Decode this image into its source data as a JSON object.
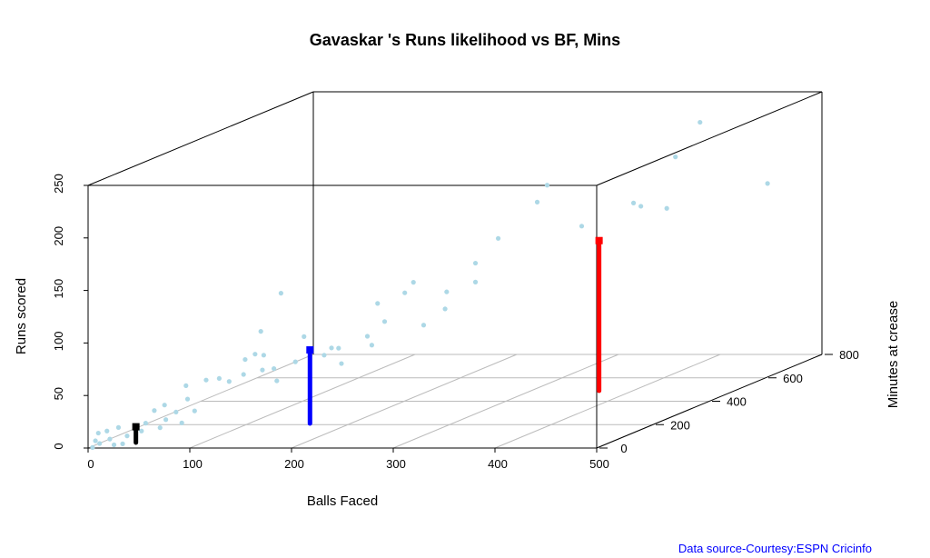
{
  "chart_data": {
    "type": "scatter3d",
    "title": "Gavaskar 's Runs likelihood vs BF, Mins",
    "xlabel": "Balls Faced",
    "ylabel": "Runs scored",
    "zlabel": "Minutes at crease",
    "source": "Data source-Courtesy:ESPN Cricinfo",
    "xlim": [
      0,
      500
    ],
    "ylim": [
      0,
      250
    ],
    "zlim": [
      0,
      800
    ],
    "xticks": [
      0,
      100,
      200,
      300,
      400,
      500
    ],
    "yticks": [
      0,
      50,
      100,
      150,
      200,
      250
    ],
    "zticks": [
      0,
      200,
      400,
      600,
      800
    ],
    "grid": true,
    "points": {
      "color": "#add8e6",
      "x": [
        425,
        408,
        472,
        319,
        312,
        379,
        384,
        402,
        343,
        285,
        269,
        269,
        226,
        220,
        249,
        201,
        248,
        206,
        233,
        134,
        194,
        197,
        120,
        150,
        169,
        174,
        176,
        164,
        144,
        122,
        116,
        129,
        121,
        109,
        131,
        108,
        98,
        91,
        82,
        68,
        69,
        53,
        61,
        74,
        46,
        54,
        40,
        21,
        13,
        7,
        27,
        15,
        5,
        8,
        18,
        3,
        65,
        50,
        37,
        24
      ],
      "z": [
        638,
        612,
        708,
        478,
        468,
        568,
        576,
        603,
        514,
        427,
        404,
        404,
        339,
        330,
        374,
        302,
        372,
        309,
        350,
        201,
        291,
        296,
        180,
        225,
        254,
        261,
        264,
        246,
        216,
        183,
        174,
        194,
        182,
        164,
        197,
        162,
        147,
        137,
        123,
        102,
        104,
        80,
        92,
        111,
        69,
        81,
        60,
        32,
        20,
        11,
        41,
        23,
        8,
        12,
        27,
        5,
        98,
        75,
        56,
        36
      ],
      "y": [
        239,
        209,
        173,
        197,
        182,
        170,
        166,
        161,
        154,
        152,
        131,
        113,
        120,
        111,
        107,
        104,
        91,
        86,
        78,
        125,
        74,
        65,
        91,
        81,
        67,
        66,
        51,
        61,
        58,
        68,
        70,
        54,
        54,
        66,
        42,
        52,
        47,
        51,
        51,
        48,
        35,
        32,
        24,
        23,
        28,
        18,
        17,
        16,
        14,
        13,
        7,
        6,
        6,
        3,
        0,
        0,
        13,
        11,
        10,
        0
      ]
    },
    "stems": [
      {
        "color": "#000000",
        "x": 34,
        "y": 15,
        "z": 47
      },
      {
        "color": "#0000ff",
        "x": 160,
        "y": 70,
        "z": 210
      },
      {
        "color": "#ff0000",
        "x": 367,
        "y": 143,
        "z": 489
      }
    ]
  }
}
